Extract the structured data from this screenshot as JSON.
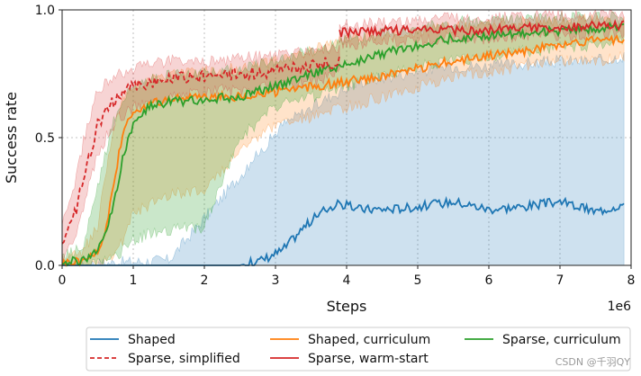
{
  "chart_data": {
    "type": "line",
    "xlabel": "Steps",
    "ylabel": "Success rate",
    "x_multiplier_label": "1e6",
    "xlim": [
      0,
      8
    ],
    "ylim": [
      0,
      1
    ],
    "xticks": [
      "0",
      "1",
      "2",
      "3",
      "4",
      "5",
      "6",
      "7",
      "8"
    ],
    "yticks": [
      "0.0",
      "0.5",
      "1.0"
    ],
    "grid": true,
    "legend_placement": "below",
    "series": [
      {
        "name": "Shaped",
        "color": "#1f77b4",
        "style": "solid",
        "x": [
          0,
          1.5,
          2.2,
          2.5,
          2.8,
          3.1,
          3.4,
          3.7,
          3.9,
          4.2,
          4.6,
          5.0,
          5.5,
          6.0,
          6.5,
          7.0,
          7.5,
          7.9
        ],
        "mean": [
          0,
          0,
          0,
          0.0,
          0.02,
          0.06,
          0.15,
          0.22,
          0.24,
          0.22,
          0.22,
          0.23,
          0.25,
          0.22,
          0.23,
          0.25,
          0.21,
          0.24
        ],
        "upper": [
          0,
          0.02,
          0.25,
          0.35,
          0.45,
          0.55,
          0.6,
          0.65,
          0.68,
          0.72,
          0.74,
          0.76,
          0.78,
          0.78,
          0.79,
          0.8,
          0.8,
          0.82
        ],
        "lower": [
          0,
          0,
          0,
          0,
          0,
          0,
          0,
          0,
          0,
          0,
          0,
          0,
          0,
          0,
          0,
          0,
          0,
          0
        ]
      },
      {
        "name": "Shaped, curriculum",
        "color": "#ff7f0e",
        "style": "solid",
        "x": [
          0,
          0.3,
          0.5,
          0.6,
          0.75,
          0.85,
          1.0,
          1.3,
          1.6,
          2.0,
          2.5,
          3.0,
          3.5,
          4.0,
          4.5,
          5.0,
          5.5,
          6.0,
          6.5,
          7.0,
          7.5,
          7.9
        ],
        "mean": [
          0.01,
          0.02,
          0.05,
          0.12,
          0.35,
          0.52,
          0.6,
          0.64,
          0.65,
          0.66,
          0.66,
          0.68,
          0.7,
          0.72,
          0.74,
          0.77,
          0.8,
          0.82,
          0.84,
          0.86,
          0.88,
          0.88
        ],
        "upper": [
          0.03,
          0.06,
          0.15,
          0.35,
          0.55,
          0.66,
          0.7,
          0.74,
          0.75,
          0.76,
          0.77,
          0.8,
          0.84,
          0.88,
          0.9,
          0.92,
          0.93,
          0.94,
          0.95,
          0.96,
          0.96,
          0.95
        ],
        "lower": [
          0,
          0,
          0.01,
          0.02,
          0.05,
          0.1,
          0.2,
          0.25,
          0.28,
          0.3,
          0.45,
          0.55,
          0.58,
          0.62,
          0.66,
          0.7,
          0.74,
          0.76,
          0.78,
          0.8,
          0.8,
          0.82
        ]
      },
      {
        "name": "Sparse, curriculum",
        "color": "#2ca02c",
        "style": "solid",
        "x": [
          0,
          0.3,
          0.5,
          0.7,
          0.85,
          1.0,
          1.2,
          1.5,
          2.0,
          2.5,
          3.0,
          3.5,
          4.0,
          4.5,
          5.0,
          5.5,
          6.0,
          6.5,
          7.0,
          7.5,
          7.9
        ],
        "mean": [
          0.01,
          0.02,
          0.06,
          0.2,
          0.42,
          0.55,
          0.62,
          0.64,
          0.65,
          0.66,
          0.7,
          0.75,
          0.79,
          0.83,
          0.86,
          0.89,
          0.9,
          0.91,
          0.92,
          0.93,
          0.93
        ],
        "upper": [
          0.03,
          0.08,
          0.3,
          0.55,
          0.65,
          0.7,
          0.72,
          0.74,
          0.75,
          0.77,
          0.8,
          0.84,
          0.88,
          0.91,
          0.93,
          0.95,
          0.96,
          0.96,
          0.97,
          0.97,
          0.97
        ],
        "lower": [
          0,
          0,
          0.01,
          0.03,
          0.06,
          0.1,
          0.12,
          0.14,
          0.15,
          0.5,
          0.62,
          0.66,
          0.7,
          0.74,
          0.78,
          0.8,
          0.82,
          0.84,
          0.85,
          0.86,
          0.88
        ]
      },
      {
        "name": "Sparse, simplified",
        "color": "#d62728",
        "style": "dashed",
        "x": [
          0,
          0.2,
          0.35,
          0.5,
          0.65,
          0.8,
          1.0,
          1.5,
          2.0,
          2.5,
          3.0,
          3.5,
          3.9
        ],
        "mean": [
          0.08,
          0.22,
          0.4,
          0.55,
          0.62,
          0.66,
          0.7,
          0.73,
          0.74,
          0.75,
          0.76,
          0.78,
          0.8
        ],
        "upper": [
          0.15,
          0.35,
          0.55,
          0.68,
          0.72,
          0.75,
          0.77,
          0.8,
          0.8,
          0.81,
          0.82,
          0.84,
          0.85
        ],
        "lower": [
          0.04,
          0.12,
          0.28,
          0.44,
          0.52,
          0.58,
          0.62,
          0.66,
          0.68,
          0.69,
          0.7,
          0.72,
          0.75
        ]
      },
      {
        "name": "Sparse, warm-start",
        "color": "#d62728",
        "style": "solid",
        "x": [
          3.9,
          4.5,
          5.0,
          5.5,
          6.0,
          6.5,
          7.0,
          7.5,
          7.9
        ],
        "mean": [
          0.91,
          0.92,
          0.92,
          0.92,
          0.92,
          0.93,
          0.93,
          0.94,
          0.94
        ],
        "upper": [
          0.94,
          0.95,
          0.96,
          0.97,
          0.97,
          0.97,
          0.98,
          0.98,
          0.98
        ],
        "lower": [
          0.86,
          0.88,
          0.88,
          0.89,
          0.89,
          0.9,
          0.9,
          0.91,
          0.91
        ]
      }
    ]
  },
  "legend": {
    "items": [
      {
        "label": "Shaped",
        "color": "#1f77b4",
        "style": "solid"
      },
      {
        "label": "Shaped, curriculum",
        "color": "#ff7f0e",
        "style": "solid"
      },
      {
        "label": "Sparse, curriculum",
        "color": "#2ca02c",
        "style": "solid"
      },
      {
        "label": "Sparse, simplified",
        "color": "#d62728",
        "style": "dashed"
      },
      {
        "label": "Sparse, warm-start",
        "color": "#d62728",
        "style": "solid"
      }
    ]
  },
  "watermark": "CSDN @千羽QY"
}
